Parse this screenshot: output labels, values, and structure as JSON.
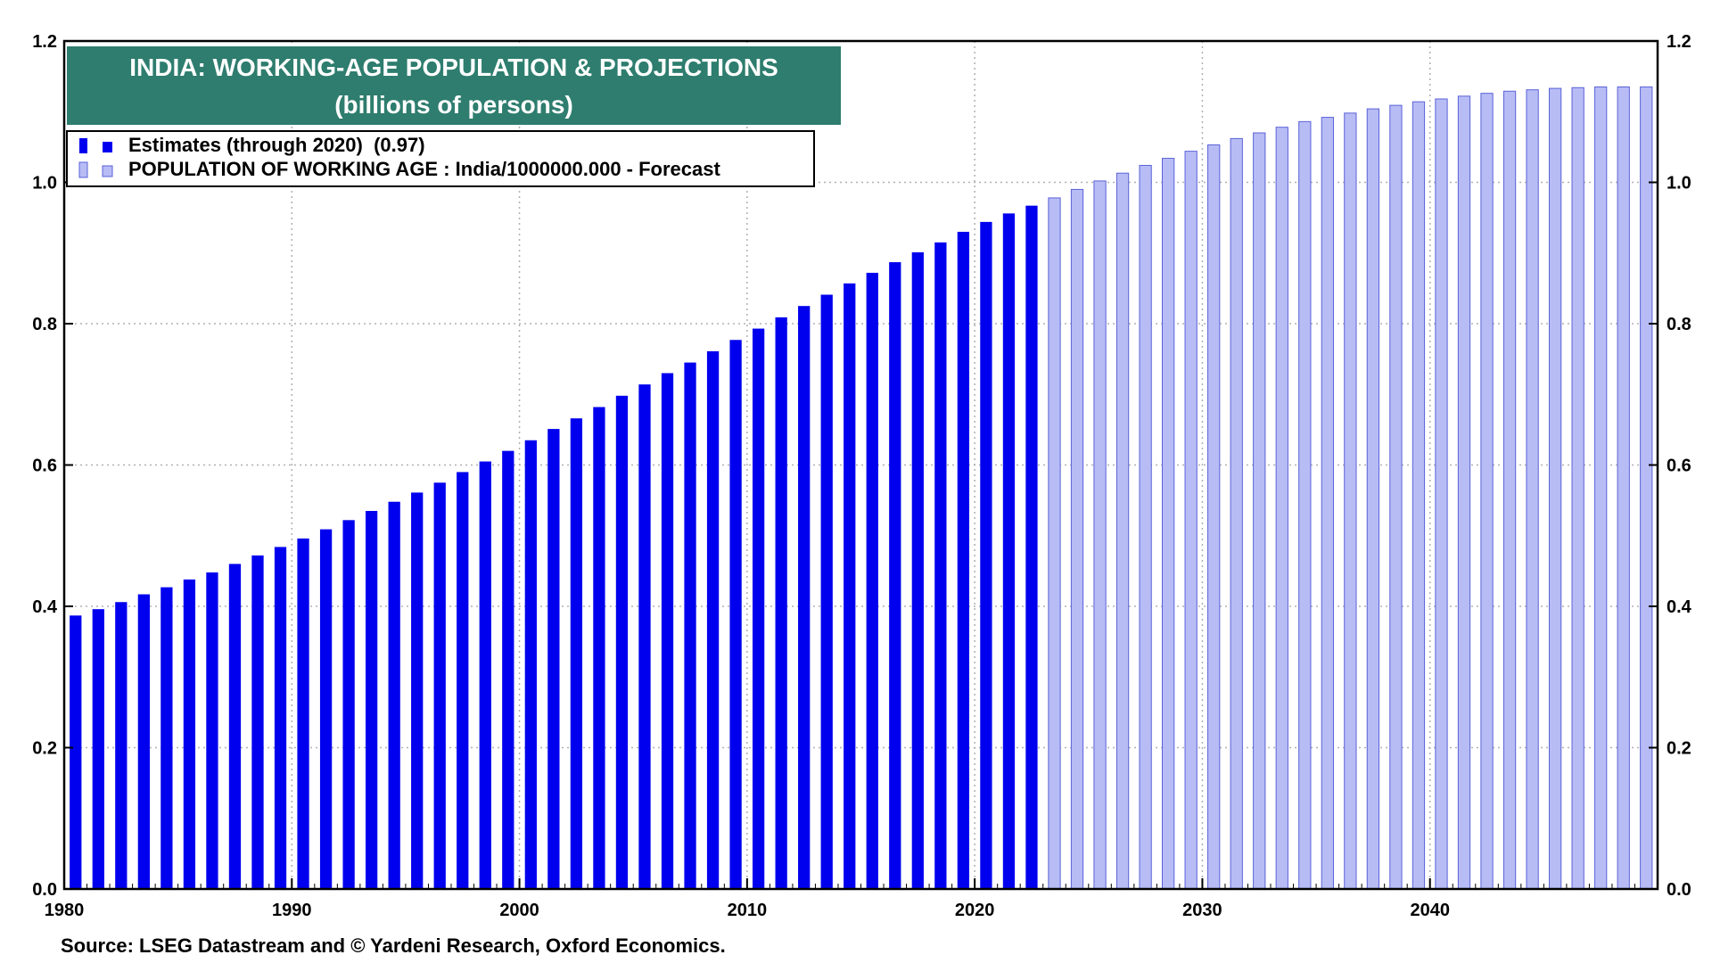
{
  "chart_data": {
    "type": "bar",
    "title": "INDIA: WORKING-AGE POPULATION & PROJECTIONS",
    "subtitle": "(billions of persons)",
    "source": "Source: LSEG Datastream and © Yardeni Research, Oxford Economics.",
    "xlabel": "",
    "ylabel": "",
    "ylim": [
      0,
      1.2
    ],
    "y_ticks": [
      "0.0",
      "0.2",
      "0.4",
      "0.6",
      "0.8",
      "1.0",
      "1.2"
    ],
    "x_ticks": [
      "1980",
      "1990",
      "2000",
      "2010",
      "2020",
      "2030",
      "2040"
    ],
    "x_range": [
      1980,
      2050
    ],
    "grid": true,
    "legend_position": "top-left",
    "series": [
      {
        "name": "Estimates (through 2020)  (0.97)",
        "color": "#0000ee",
        "x": [
          1981,
          1982,
          1983,
          1984,
          1985,
          1986,
          1987,
          1988,
          1989,
          1990,
          1991,
          1992,
          1993,
          1994,
          1995,
          1996,
          1997,
          1998,
          1999,
          2000,
          2001,
          2002,
          2003,
          2004,
          2005,
          2006,
          2007,
          2008,
          2009,
          2010,
          2011,
          2012,
          2013,
          2014,
          2015,
          2016,
          2017,
          2018,
          2019,
          2020,
          2021,
          2022,
          2023
        ],
        "values": [
          0.387,
          0.396,
          0.406,
          0.417,
          0.427,
          0.438,
          0.448,
          0.46,
          0.472,
          0.484,
          0.496,
          0.509,
          0.522,
          0.535,
          0.548,
          0.561,
          0.575,
          0.59,
          0.605,
          0.62,
          0.635,
          0.651,
          0.666,
          0.682,
          0.698,
          0.714,
          0.73,
          0.745,
          0.761,
          0.777,
          0.793,
          0.809,
          0.825,
          0.841,
          0.857,
          0.872,
          0.887,
          0.901,
          0.915,
          0.93,
          0.944,
          0.956,
          0.967
        ]
      },
      {
        "name": "POPULATION OF WORKING AGE : India/1000000.000 - Forecast",
        "color": "#b8bcf5",
        "edge_color": "#5a62d8",
        "x": [
          2024,
          2025,
          2026,
          2027,
          2028,
          2029,
          2030,
          2031,
          2032,
          2033,
          2034,
          2035,
          2036,
          2037,
          2038,
          2039,
          2040,
          2041,
          2042,
          2043,
          2044,
          2045,
          2046,
          2047,
          2048,
          2049,
          2050
        ],
        "values": [
          0.978,
          0.99,
          1.002,
          1.013,
          1.024,
          1.034,
          1.044,
          1.053,
          1.062,
          1.07,
          1.078,
          1.086,
          1.092,
          1.098,
          1.104,
          1.109,
          1.114,
          1.118,
          1.122,
          1.126,
          1.129,
          1.131,
          1.133,
          1.134,
          1.135,
          1.135,
          1.135
        ]
      }
    ],
    "colors": {
      "title_bg": "#2e7d6e",
      "grid": "#b0b0b0"
    }
  }
}
